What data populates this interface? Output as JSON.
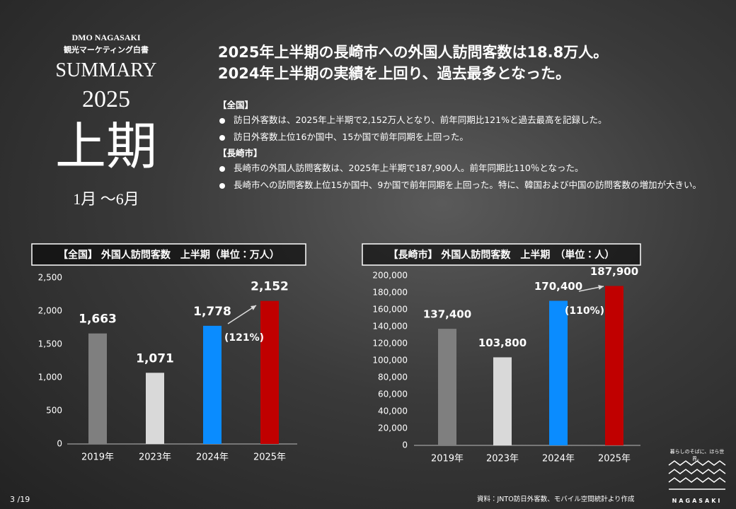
{
  "header": {
    "org": "DMO NAGASAKI",
    "subtitle": "観光マーケティング白書",
    "summary": "SUMMARY",
    "year": "2025",
    "period": "上期",
    "months": "1月 〜6月"
  },
  "headline": [
    "2025年上半期の長崎市への外国人訪問客数は18.8万人。",
    "2024年上半期の実績を上回り、過去最多となった。"
  ],
  "sections": [
    {
      "heading": "【全国】",
      "bullets": [
        "訪日外客数は、2025年上半期で2,152万人となり、前年同期比121%と過去最高を記録した。",
        "訪日外客数上位16か国中、15か国で前年同期を上回った。"
      ]
    },
    {
      "heading": "【長崎市】",
      "bullets": [
        "長崎市の外国人訪問客数は、2025年上半期で187,900人。前年同期比110％となった。",
        "長崎市への訪問客数上位15か国中、9か国で前年同期を上回った。特に、韓国および中国の訪問客数の増加が大きい。"
      ]
    }
  ],
  "chart_data": [
    {
      "type": "bar",
      "title": "【全国】 外国人訪問客数　上半期（単位：万人）",
      "categories": [
        "2019年",
        "2023年",
        "2024年",
        "2025年"
      ],
      "values": [
        1663,
        1071,
        1778,
        2152
      ],
      "value_labels": [
        "1,663",
        "1,071",
        "1,778",
        "2,152"
      ],
      "colors": [
        "#7f7f7f",
        "#d9d9d9",
        "#0a8cff",
        "#c00000"
      ],
      "ylim": [
        0,
        2500
      ],
      "yticks": [
        0,
        500,
        {
          "value": 1000,
          "label": "1,000"
        },
        {
          "value": 1500,
          "label": "1,500"
        },
        {
          "value": 2000,
          "label": "2,000"
        },
        {
          "value": 2500,
          "label": "2,500"
        }
      ],
      "annotation": "(121%)"
    },
    {
      "type": "bar",
      "title": "【長崎市】 外国人訪問客数　上半期　（単位：人）",
      "categories": [
        "2019年",
        "2023年",
        "2024年",
        "2025年"
      ],
      "values": [
        137400,
        103800,
        170400,
        187900
      ],
      "value_labels": [
        "137,400",
        "103,800",
        "170,400",
        "187,900"
      ],
      "colors": [
        "#7f7f7f",
        "#d9d9d9",
        "#0a8cff",
        "#c00000"
      ],
      "ylim": [
        0,
        200000
      ],
      "yticks": [
        0,
        {
          "value": 20000,
          "label": "20,000"
        },
        {
          "value": 40000,
          "label": "40,000"
        },
        {
          "value": 60000,
          "label": "60,000"
        },
        {
          "value": 80000,
          "label": "80,000"
        },
        {
          "value": 100000,
          "label": "100,000"
        },
        {
          "value": 120000,
          "label": "120,000"
        },
        {
          "value": 140000,
          "label": "140,000"
        },
        {
          "value": 160000,
          "label": "160,000"
        },
        {
          "value": 180000,
          "label": "180,000"
        },
        {
          "value": 200000,
          "label": "200,000"
        }
      ],
      "annotation": "(110%)"
    }
  ],
  "page": "3 /19",
  "source": "資料：JNTO訪日外客数、モバイル空間統計より作成",
  "logo": {
    "tagline": "暮らしのそばに、ほら世界。",
    "name": "NAGASAKI"
  }
}
